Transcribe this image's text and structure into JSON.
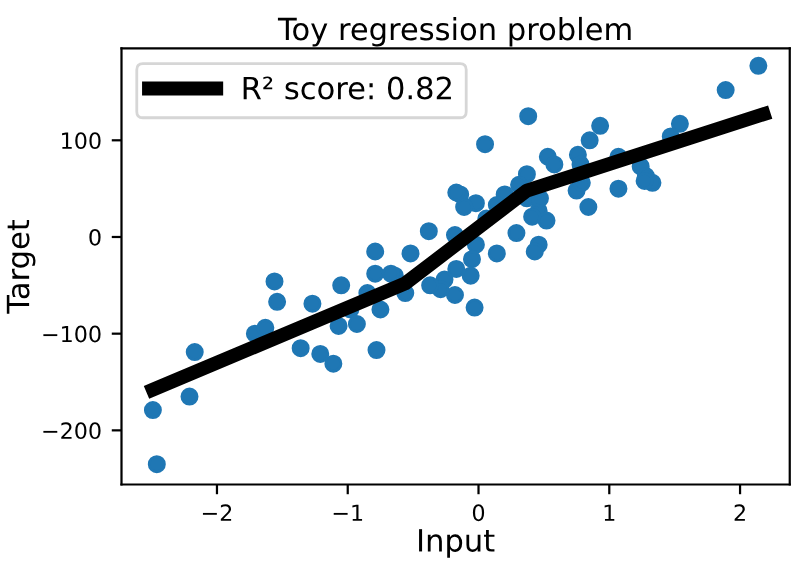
{
  "chart_data": {
    "type": "scatter",
    "title": "Toy regression problem",
    "xlabel": "Input",
    "ylabel": "Target",
    "xlim": [
      -2.73,
      2.38
    ],
    "ylim": [
      -256,
      195
    ],
    "xticks": [
      {
        "value": -2,
        "label": "−2"
      },
      {
        "value": -1,
        "label": "−1"
      },
      0,
      1,
      2
    ],
    "yticks": [
      {
        "value": -200,
        "label": "−200"
      },
      {
        "value": -100,
        "label": "−100"
      },
      0,
      100
    ],
    "grid": false,
    "legend": "top left",
    "marker": "circle",
    "series": [
      {
        "color": "#1f77b4",
        "x": [
          2.14,
          1.89,
          0.38,
          0.93,
          0.85,
          1.54,
          1.47,
          0.05,
          0.53,
          0.58,
          0.76,
          0.78,
          1.07,
          1.24,
          1.28,
          1.33,
          1.27,
          1.07,
          0.84,
          0.75,
          0.79,
          0.37,
          0.31,
          0.37,
          0.46,
          0.52,
          0.41,
          0.47,
          0.2,
          0.14,
          -0.02,
          -0.14,
          -0.11,
          0.06,
          -0.18,
          0.29,
          0.46,
          0.43,
          0.14,
          -0.02,
          -0.05,
          -0.17,
          -0.06,
          -0.26,
          -0.18,
          -0.03,
          -0.17,
          -0.38,
          -0.52,
          -0.79,
          -0.64,
          -0.29,
          -0.37,
          -0.56,
          -0.75,
          -0.79,
          -0.67,
          -0.85,
          -1.05,
          -0.98,
          -0.93,
          -1.07,
          -0.78,
          -1.11,
          -1.21,
          -1.36,
          -1.27,
          -1.56,
          -1.54,
          -1.71,
          -1.63,
          -2.17,
          -2.21,
          -2.49,
          -2.46
        ],
        "values": [
          177,
          152,
          125,
          115,
          100,
          117,
          104,
          96,
          83,
          75,
          85,
          75,
          83,
          73,
          63,
          56,
          58,
          50,
          31,
          48,
          56,
          65,
          54,
          40,
          27,
          17,
          21,
          40,
          44,
          33,
          35,
          44,
          31,
          19,
          2,
          4,
          -8,
          -15,
          -17,
          -8,
          -23,
          -33,
          -40,
          -44,
          -60,
          -73,
          46,
          6,
          -17,
          -15,
          -40,
          -54,
          -50,
          -58,
          -75,
          -38,
          -38,
          -58,
          -50,
          -75,
          -90,
          -92,
          -117,
          -131,
          -121,
          -115,
          -69,
          -46,
          -67,
          -100,
          -94,
          -119,
          -165,
          -179,
          -235
        ]
      },
      {
        "type": "line",
        "name": "R² score: 0.82",
        "color": "#000000",
        "marker": "none",
        "line_style": "solid",
        "x": [
          -2.49,
          -0.56,
          0.37,
          2.18
        ],
        "values": [
          -158,
          -48,
          48,
          127
        ]
      }
    ]
  }
}
